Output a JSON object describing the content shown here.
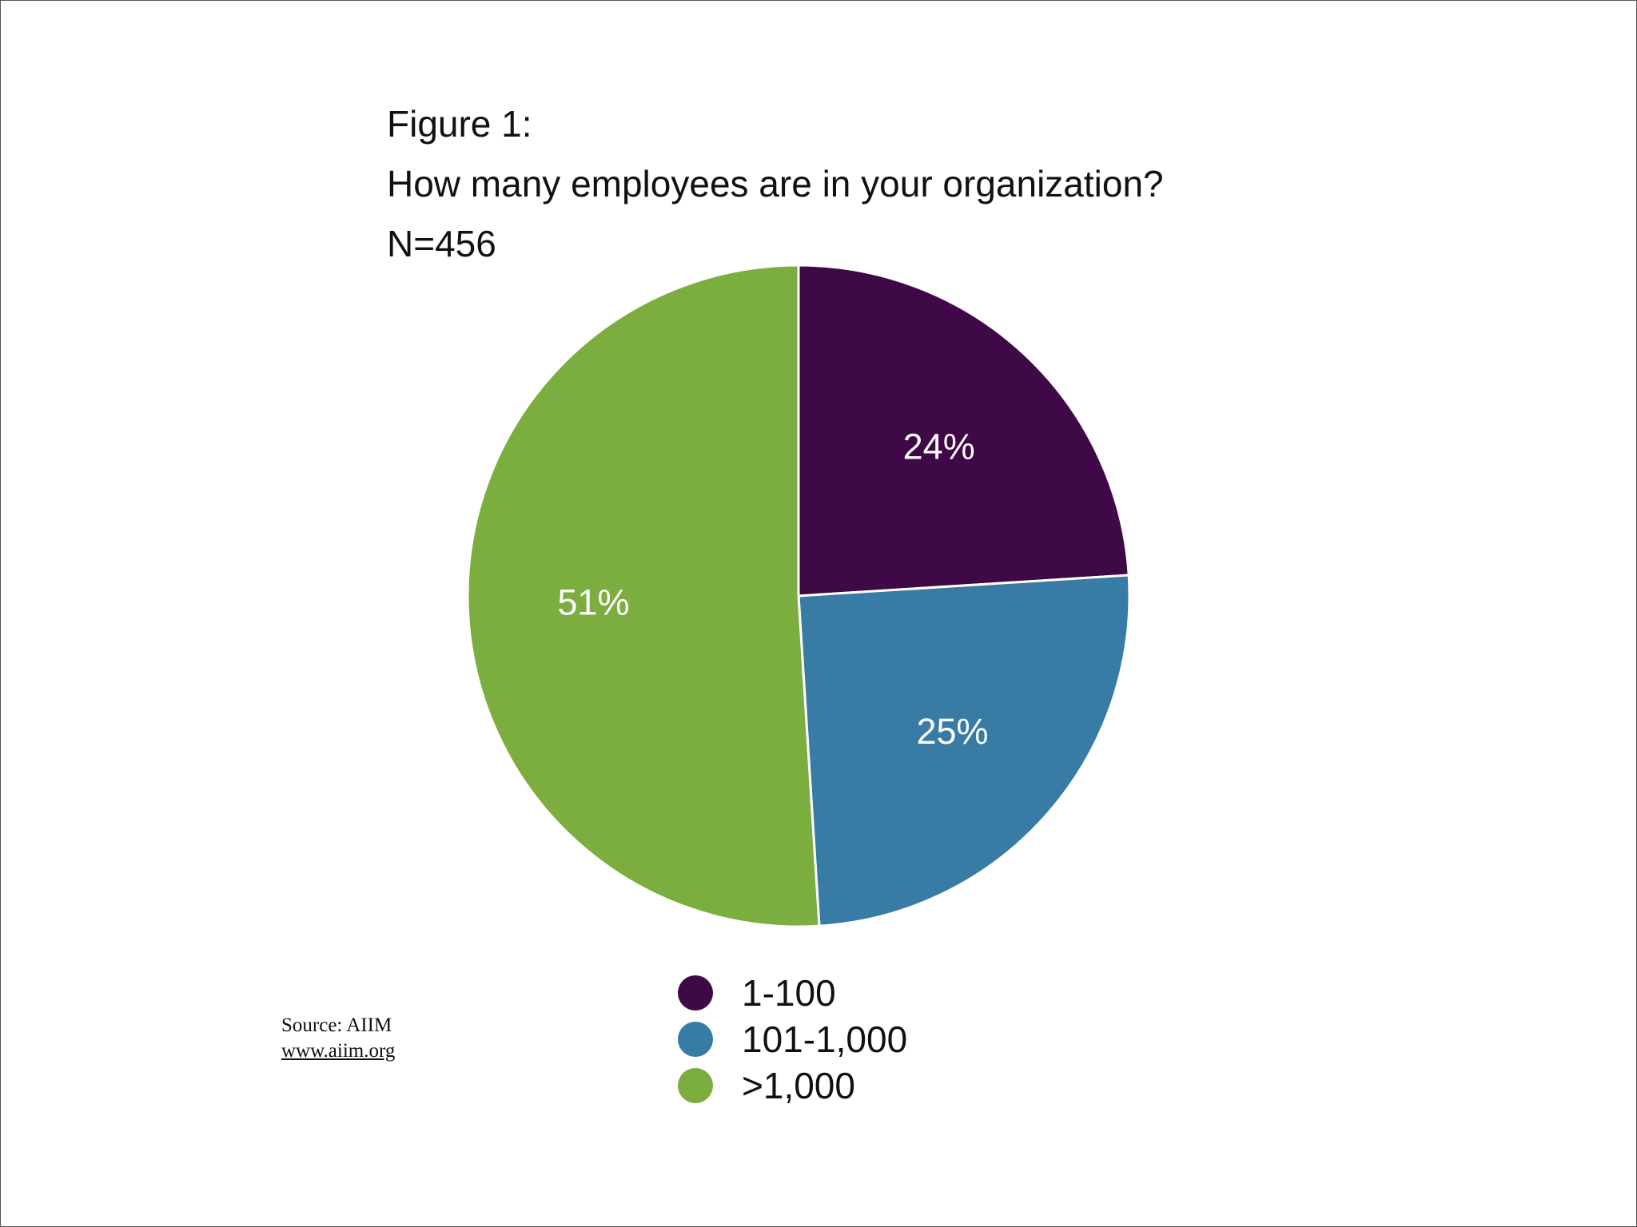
{
  "chart_data": {
    "type": "pie",
    "title_lines": [
      "Figure 1:",
      "How many employees are in your organization?",
      "N=456"
    ],
    "categories": [
      "1-100",
      "101-1,000",
      ">1,000"
    ],
    "values": [
      24,
      25,
      51
    ],
    "data_labels": [
      "24%",
      "25%",
      "51%"
    ],
    "colors": [
      "#3f0846",
      "#387ba4",
      "#7cad3f"
    ],
    "legend_position": "bottom",
    "start_angle_deg": 0,
    "direction": "clockwise"
  },
  "source": {
    "text": "Source:  AIIM",
    "url_text": "www.aiim.org"
  }
}
